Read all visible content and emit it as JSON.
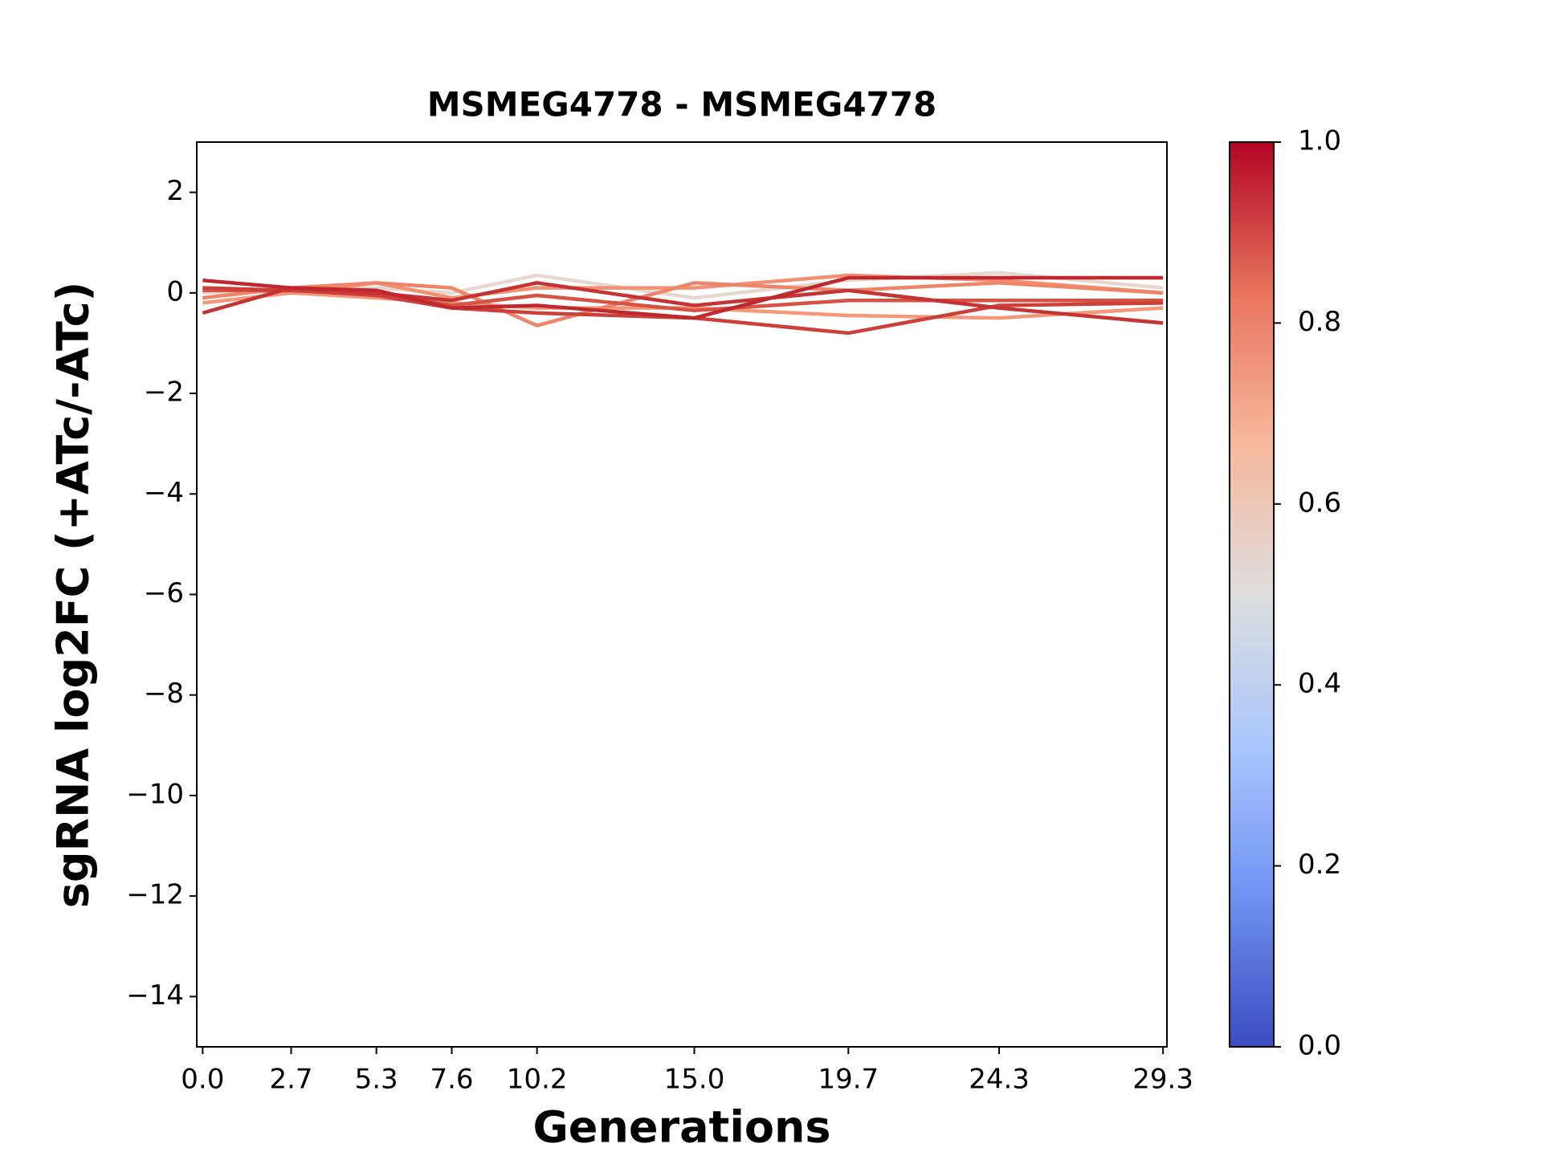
{
  "chart_data": {
    "type": "line",
    "title": "MSMEG4778 - MSMEG4778",
    "xlabel": "Generations",
    "ylabel": "sgRNA log2FC (+ATc/-ATc)",
    "x": [
      0,
      2.7,
      5.3,
      7.6,
      10.2,
      15,
      19.7,
      24.3,
      29.3
    ],
    "xlim": [
      -0.18,
      29.42
    ],
    "xticks": [
      {
        "value": 0,
        "label": "0.0"
      },
      2.7,
      5.3,
      7.6,
      10.2,
      {
        "value": 15,
        "label": "15.0"
      },
      19.7,
      24.3,
      29.3
    ],
    "ylim": [
      -15,
      3
    ],
    "yticks": [
      {
        "value": -14,
        "label": "−14"
      },
      {
        "value": -12,
        "label": "−12"
      },
      {
        "value": -10,
        "label": "−10"
      },
      {
        "value": -8,
        "label": "−8"
      },
      {
        "value": -6,
        "label": "−6"
      },
      {
        "value": -4,
        "label": "−4"
      },
      {
        "value": -2,
        "label": "−2"
      },
      0,
      2
    ],
    "grid": false,
    "series": [
      {
        "color": "#e6d7cf",
        "values": [
          0.0,
          0.05,
          0.1,
          0.0,
          0.35,
          -0.1,
          0.25,
          0.4,
          0.1
        ]
      },
      {
        "color": "#f4987a",
        "values": [
          -0.2,
          0.0,
          -0.1,
          -0.2,
          -0.3,
          -0.3,
          -0.45,
          -0.5,
          -0.3
        ]
      },
      {
        "color": "#f29072",
        "values": [
          0.1,
          0.0,
          0.2,
          -0.1,
          0.1,
          0.1,
          0.35,
          0.25,
          0.0
        ]
      },
      {
        "color": "#ee8468",
        "values": [
          -0.1,
          0.1,
          0.2,
          0.1,
          -0.65,
          0.2,
          0.05,
          0.2,
          0.0
        ]
      },
      {
        "color": "#d65244",
        "values": [
          0.05,
          0.05,
          0.0,
          -0.25,
          -0.05,
          -0.35,
          -0.15,
          -0.15,
          -0.15
        ]
      },
      {
        "color": "#cc403a",
        "values": [
          0.1,
          0.05,
          -0.05,
          -0.3,
          -0.4,
          -0.5,
          -0.8,
          -0.25,
          -0.2
        ]
      },
      {
        "color": "#c53334",
        "values": [
          -0.4,
          0.1,
          0.0,
          -0.15,
          0.2,
          -0.25,
          0.05,
          -0.3,
          -0.6
        ]
      },
      {
        "color": "#c0282f",
        "values": [
          0.25,
          0.1,
          0.05,
          -0.3,
          -0.25,
          -0.5,
          0.3,
          0.3,
          0.3
        ]
      }
    ],
    "colorbar": {
      "lim": [
        0,
        1
      ],
      "ticks": [
        {
          "value": 0,
          "label": "0.0"
        },
        {
          "value": 0.2,
          "label": "0.2"
        },
        {
          "value": 0.4,
          "label": "0.4"
        },
        {
          "value": 0.6,
          "label": "0.6"
        },
        {
          "value": 0.8,
          "label": "0.8"
        },
        {
          "value": 1,
          "label": "1.0"
        }
      ],
      "colors": [
        "#3b4cc0",
        "#6f92f3",
        "#aac7fd",
        "#dddddd",
        "#f7b89c",
        "#e7745b",
        "#b40426"
      ]
    }
  }
}
